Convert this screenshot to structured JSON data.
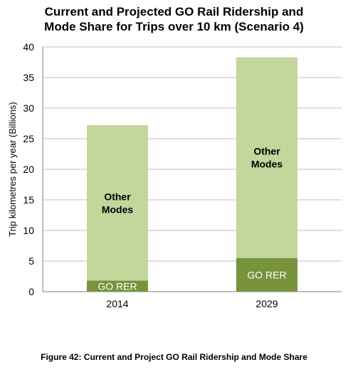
{
  "chart_data": {
    "type": "bar",
    "stacked": true,
    "title_lines": [
      "Current and Projected GO Rail Ridership and",
      "Mode Share for Trips over 10 km (Scenario 4)"
    ],
    "ylabel": "Trip kilometres per year (Billions)",
    "xlabel": "",
    "ylim": [
      0,
      40
    ],
    "yticks": [
      "0",
      "5",
      "10",
      "15",
      "20",
      "25",
      "30",
      "35",
      "40"
    ],
    "categories": [
      "2014",
      "2029"
    ],
    "grid": true,
    "legend": "none",
    "series": [
      {
        "name": "GO RER",
        "values": [
          1.8,
          5.5
        ],
        "color": "#77933c",
        "label_color": "#ffffff",
        "labels": [
          "GO RER",
          "GO RER"
        ]
      },
      {
        "name": "Other Modes",
        "values": [
          25.4,
          32.8
        ],
        "color": "#c3d69b",
        "label_color": "#000000",
        "labels": [
          "Other\nModes",
          "Other\nModes"
        ]
      }
    ]
  },
  "caption": "Figure 42: Current and Project GO Rail Ridership and Mode Share"
}
